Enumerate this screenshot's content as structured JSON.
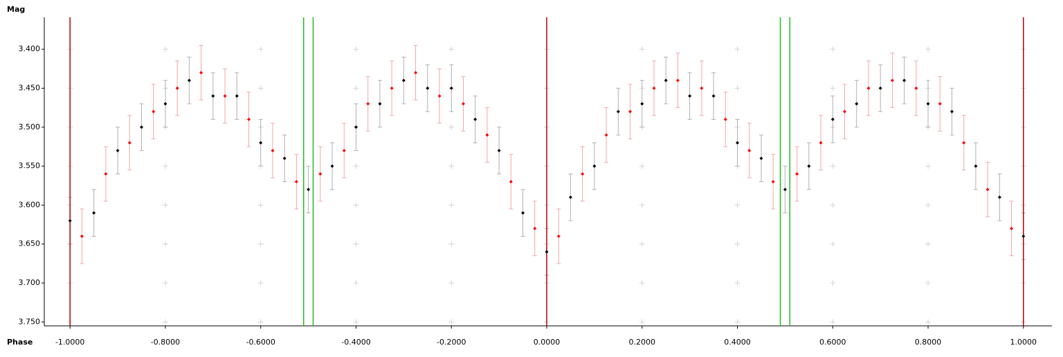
{
  "chart_data": {
    "type": "scatter",
    "y_label": "Mag",
    "x_label": "Phase",
    "xlim": [
      -1.054,
      1.054
    ],
    "ylim": [
      3.359,
      3.755
    ],
    "y_inverted": true,
    "grid": true,
    "xticks": [
      {
        "value": -1,
        "label": "-1.0000"
      },
      {
        "value": -0.8,
        "label": "-0.8000"
      },
      {
        "value": -0.6,
        "label": "-0.6000"
      },
      {
        "value": -0.4,
        "label": "-0.4000"
      },
      {
        "value": -0.2,
        "label": "-0.2000"
      },
      {
        "value": 0,
        "label": "0.0000"
      },
      {
        "value": 0.2,
        "label": "0.2000"
      },
      {
        "value": 0.4,
        "label": "0.4000"
      },
      {
        "value": 0.6,
        "label": "0.6000"
      },
      {
        "value": 0.8,
        "label": "0.8000"
      },
      {
        "value": 1,
        "label": "1.0000"
      }
    ],
    "yticks": [
      {
        "value": 3.4,
        "label": "3.400"
      },
      {
        "value": 3.45,
        "label": "3.450"
      },
      {
        "value": 3.5,
        "label": "3.500"
      },
      {
        "value": 3.55,
        "label": "3.550"
      },
      {
        "value": 3.6,
        "label": "3.600"
      },
      {
        "value": 3.65,
        "label": "3.650"
      },
      {
        "value": 3.7,
        "label": "3.700"
      },
      {
        "value": 3.75,
        "label": "3.750"
      }
    ],
    "vlines": [
      {
        "x": -1,
        "color": "#b00000"
      },
      {
        "x": 0,
        "color": "#b00000"
      },
      {
        "x": 1,
        "color": "#b00000"
      },
      {
        "x": -0.51,
        "color": "#22bb22"
      },
      {
        "x": -0.49,
        "color": "#22bb22"
      },
      {
        "x": 0.49,
        "color": "#22bb22"
      },
      {
        "x": 0.51,
        "color": "#22bb22"
      }
    ],
    "series": [
      {
        "color": "#000000",
        "error_color": "#b0b0b0",
        "error": 0.03,
        "x": [
          -1,
          -0.95,
          -0.9,
          -0.85,
          -0.8,
          -0.75,
          -0.7,
          -0.65,
          -0.6,
          -0.55,
          -0.5,
          -0.45,
          -0.4,
          -0.35,
          -0.3,
          -0.25,
          -0.2,
          -0.15,
          -0.1,
          -0.05,
          0,
          0.05,
          0.1,
          0.15,
          0.2,
          0.25,
          0.3,
          0.35,
          0.4,
          0.45,
          0.5,
          0.55,
          0.6,
          0.65,
          0.7,
          0.75,
          0.8,
          0.85,
          0.9,
          0.95,
          1
        ],
        "values": [
          3.62,
          3.61,
          3.53,
          3.5,
          3.47,
          3.44,
          3.46,
          3.46,
          3.52,
          3.54,
          3.58,
          3.55,
          3.5,
          3.47,
          3.44,
          3.45,
          3.45,
          3.49,
          3.53,
          3.61,
          3.66,
          3.59,
          3.55,
          3.48,
          3.47,
          3.44,
          3.46,
          3.46,
          3.52,
          3.54,
          3.58,
          3.55,
          3.49,
          3.47,
          3.45,
          3.44,
          3.47,
          3.48,
          3.55,
          3.59,
          3.64
        ]
      },
      {
        "color": "#ff0000",
        "error_color": "#f2a8a8",
        "error": 0.035,
        "x": [
          -0.975,
          -0.925,
          -0.875,
          -0.825,
          -0.775,
          -0.725,
          -0.675,
          -0.625,
          -0.575,
          -0.525,
          -0.475,
          -0.425,
          -0.375,
          -0.325,
          -0.275,
          -0.225,
          -0.175,
          -0.125,
          -0.075,
          -0.025,
          0.025,
          0.075,
          0.125,
          0.175,
          0.225,
          0.275,
          0.325,
          0.375,
          0.425,
          0.475,
          0.525,
          0.575,
          0.625,
          0.675,
          0.725,
          0.775,
          0.825,
          0.875,
          0.925,
          0.975
        ],
        "values": [
          3.64,
          3.56,
          3.52,
          3.48,
          3.45,
          3.43,
          3.46,
          3.49,
          3.53,
          3.57,
          3.56,
          3.53,
          3.47,
          3.45,
          3.43,
          3.46,
          3.47,
          3.51,
          3.57,
          3.63,
          3.64,
          3.56,
          3.51,
          3.48,
          3.45,
          3.44,
          3.45,
          3.49,
          3.53,
          3.57,
          3.56,
          3.52,
          3.48,
          3.45,
          3.44,
          3.45,
          3.47,
          3.52,
          3.58,
          3.63
        ]
      }
    ]
  }
}
